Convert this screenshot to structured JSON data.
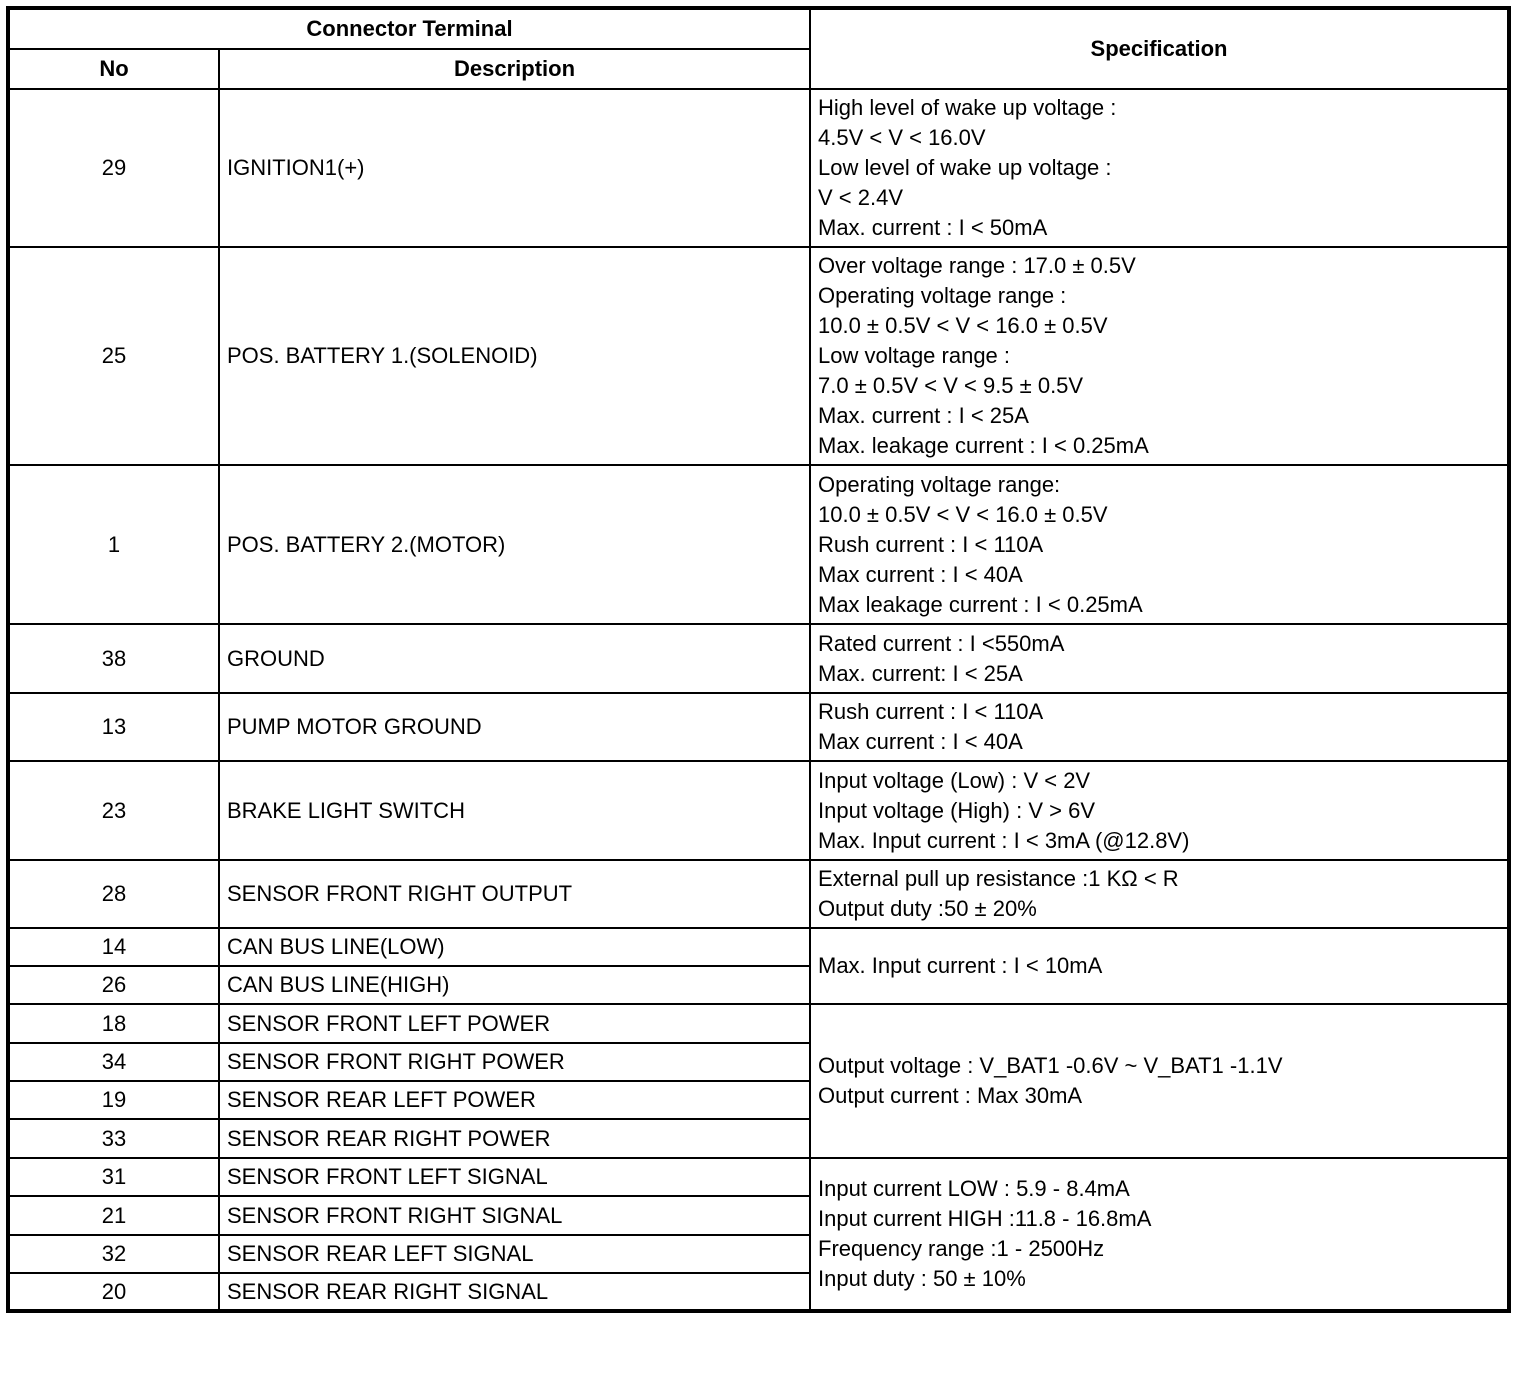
{
  "header": {
    "connector_terminal": "Connector Terminal",
    "no": "No",
    "description": "Description",
    "specification": "Specification"
  },
  "groups": [
    {
      "terminals": [
        {
          "no": "29",
          "description": "IGNITION1(+)"
        }
      ],
      "spec": [
        "High level of wake up voltage :",
        "4.5V < V < 16.0V",
        "Low level of wake up voltage :",
        "V < 2.4V",
        "Max. current : I < 50mA"
      ]
    },
    {
      "terminals": [
        {
          "no": "25",
          "description": "POS. BATTERY 1.(SOLENOID)"
        }
      ],
      "spec": [
        "Over voltage range : 17.0 ± 0.5V",
        "Operating voltage range :",
        "10.0 ± 0.5V < V < 16.0 ± 0.5V",
        "Low voltage range :",
        "7.0 ± 0.5V < V < 9.5 ± 0.5V",
        "Max. current : I < 25A",
        "Max. leakage current : I < 0.25mA"
      ]
    },
    {
      "terminals": [
        {
          "no": "1",
          "description": "POS. BATTERY 2.(MOTOR)"
        }
      ],
      "spec": [
        "Operating voltage range:",
        "10.0 ± 0.5V < V < 16.0 ± 0.5V",
        "Rush current : I < 110A",
        "Max current : I < 40A",
        "Max leakage current : I < 0.25mA"
      ]
    },
    {
      "terminals": [
        {
          "no": "38",
          "description": "GROUND"
        }
      ],
      "spec": [
        "Rated current : I <550mA",
        "Max. current: I < 25A"
      ]
    },
    {
      "terminals": [
        {
          "no": "13",
          "description": "PUMP MOTOR GROUND"
        }
      ],
      "spec": [
        "Rush current : I < 110A",
        "Max current : I < 40A"
      ]
    },
    {
      "terminals": [
        {
          "no": "23",
          "description": "BRAKE LIGHT SWITCH"
        }
      ],
      "spec": [
        "Input voltage (Low) : V < 2V",
        "Input voltage (High) : V > 6V",
        "Max. Input current : I < 3mA (@12.8V)"
      ]
    },
    {
      "terminals": [
        {
          "no": "28",
          "description": "SENSOR FRONT RIGHT OUTPUT"
        }
      ],
      "spec": [
        "External pull up resistance :1 KΩ < R",
        "Output duty :50 ± 20%"
      ]
    },
    {
      "terminals": [
        {
          "no": "14",
          "description": "CAN BUS LINE(LOW)"
        },
        {
          "no": "26",
          "description": "CAN BUS LINE(HIGH)"
        }
      ],
      "spec": [
        "Max. Input current : I < 10mA"
      ]
    },
    {
      "terminals": [
        {
          "no": "18",
          "description": "SENSOR FRONT LEFT POWER"
        },
        {
          "no": "34",
          "description": "SENSOR FRONT RIGHT POWER"
        },
        {
          "no": "19",
          "description": "SENSOR REAR LEFT POWER"
        },
        {
          "no": "33",
          "description": "SENSOR REAR RIGHT POWER"
        }
      ],
      "spec": [
        "Output voltage : V_BAT1 -0.6V ~ V_BAT1 -1.1V",
        "Output current : Max 30mA"
      ]
    },
    {
      "terminals": [
        {
          "no": "31",
          "description": "SENSOR FRONT LEFT SIGNAL"
        },
        {
          "no": "21",
          "description": "SENSOR FRONT RIGHT SIGNAL"
        },
        {
          "no": "32",
          "description": "SENSOR REAR LEFT SIGNAL"
        },
        {
          "no": "20",
          "description": "SENSOR REAR RIGHT SIGNAL"
        }
      ],
      "spec": [
        "Input current LOW : 5.9 - 8.4mA",
        "Input current HIGH :11.8 - 16.8mA",
        "Frequency range :1 - 2500Hz",
        "Input duty : 50 ± 10%"
      ]
    }
  ]
}
